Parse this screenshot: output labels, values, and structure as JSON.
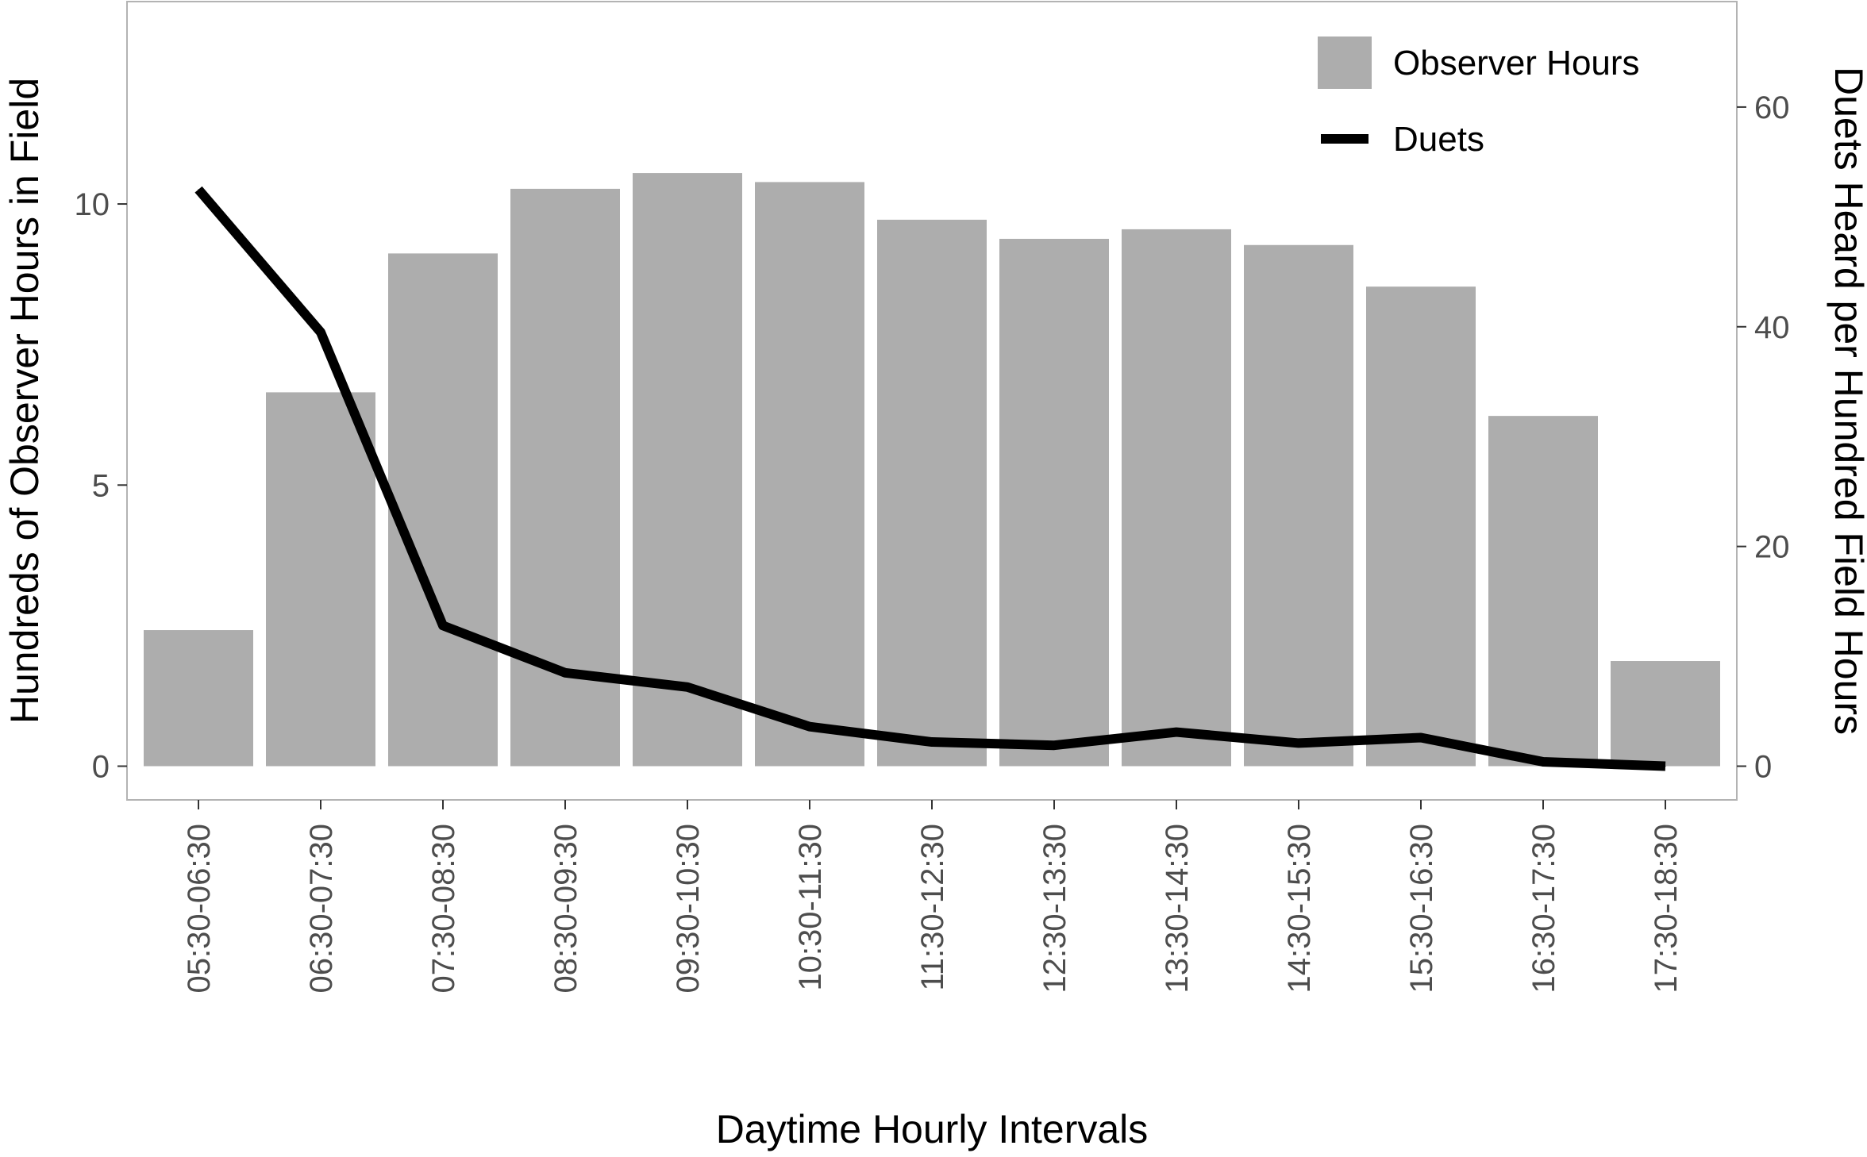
{
  "chart_data": {
    "type": "bar",
    "categories": [
      "05:30-06:30",
      "06:30-07:30",
      "07:30-08:30",
      "08:30-09:30",
      "09:30-10:30",
      "10:30-11:30",
      "11:30-12:30",
      "12:30-13:30",
      "13:30-14:30",
      "14:30-15:30",
      "15:30-16:30",
      "16:30-17:30",
      "17:30-18:30"
    ],
    "series": [
      {
        "name": "Observer Hours",
        "type": "bar",
        "axis": "left",
        "color": "#adadad",
        "values": [
          2.42,
          6.65,
          9.12,
          10.27,
          10.55,
          10.39,
          9.72,
          9.38,
          9.55,
          9.27,
          8.53,
          6.23,
          1.87
        ]
      },
      {
        "name": "Duets",
        "type": "line",
        "axis": "right",
        "color": "#000000",
        "values": [
          52.5,
          39.5,
          12.8,
          8.5,
          7.2,
          3.6,
          2.2,
          1.9,
          3.1,
          2.1,
          2.6,
          0.4,
          0.0
        ]
      }
    ],
    "xlabel": "Daytime Hourly Intervals",
    "ylabel": "Hundreds of Observer Hours in Field",
    "y2label": "Duets Heard per Hundred Field Hours",
    "ylim": [
      -0.6,
      13.6
    ],
    "y2lim": [
      -3.07,
      69.6
    ],
    "yticks": [
      "0",
      "5",
      "10"
    ],
    "y2ticks": [
      "0",
      "20",
      "40",
      "60"
    ],
    "grid": false,
    "legend": "top-right"
  }
}
